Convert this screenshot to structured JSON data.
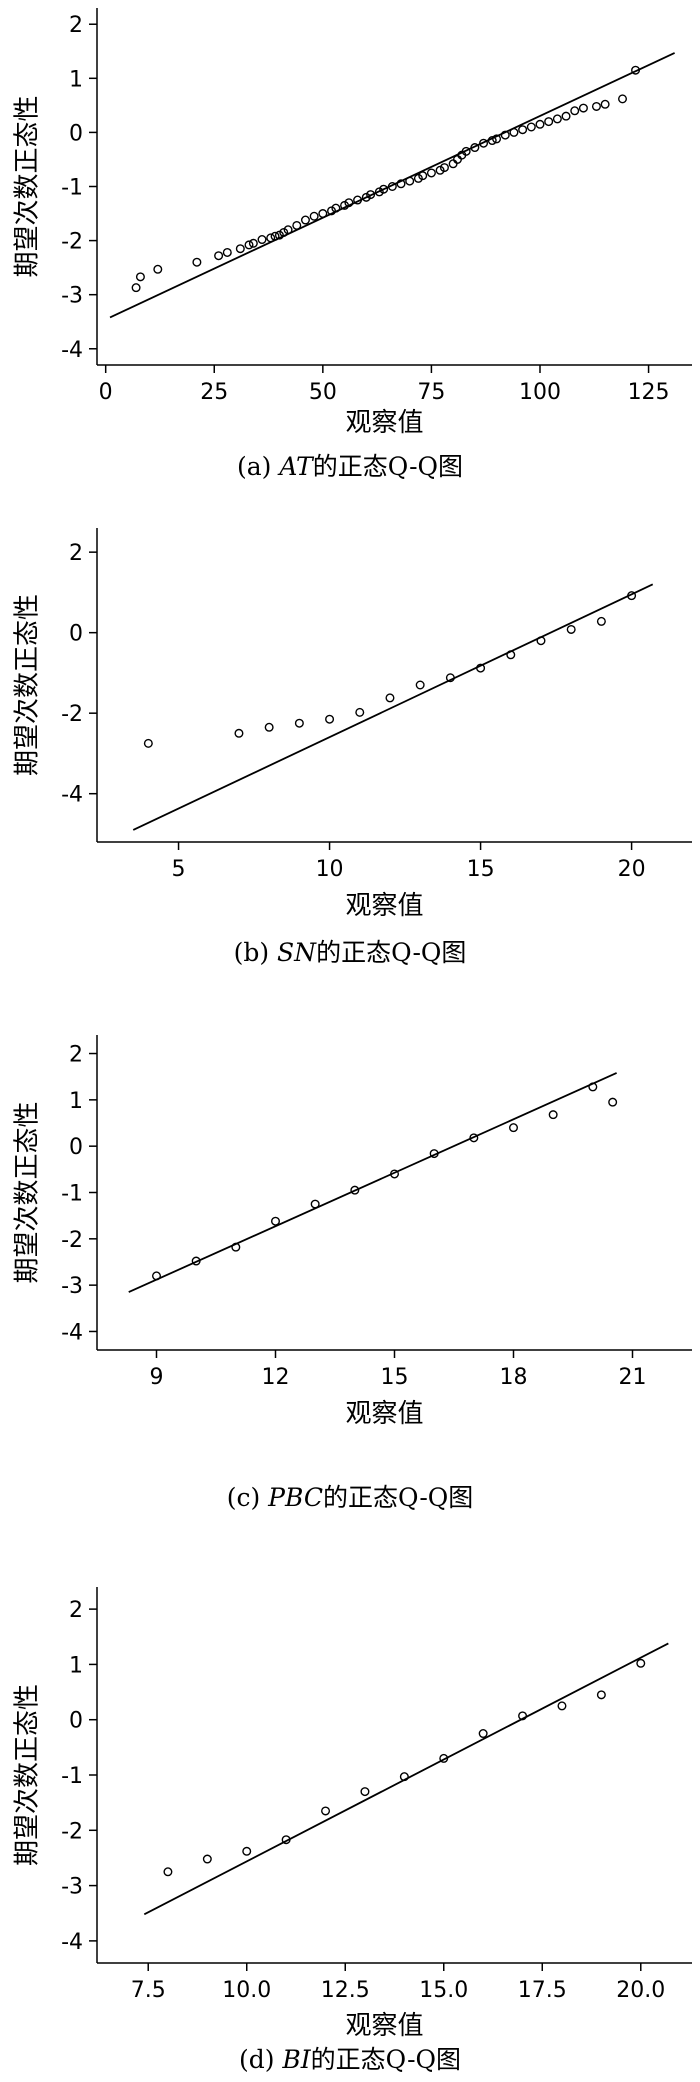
{
  "charts": [
    {
      "caption": {
        "prefix": "(a) ",
        "var": "AT",
        "suffix": "的正态Q-Q图"
      },
      "chart_data": {
        "type": "scatter",
        "title": "",
        "xlabel": "观察值",
        "ylabel": "期望次数正态性",
        "xlim": [
          -2,
          135
        ],
        "ylim": [
          -4.3,
          2.3
        ],
        "xticks": [
          0,
          25,
          50,
          75,
          100,
          125
        ],
        "xtick_labels": [
          "0",
          "25",
          "50",
          "75",
          "100",
          "125"
        ],
        "yticks": [
          2,
          1,
          0,
          -1,
          -2,
          -3,
          -4
        ],
        "ytick_labels": [
          "2",
          "1",
          "0",
          "-1",
          "-2",
          "-3",
          "-4"
        ],
        "reference_line": {
          "x": [
            1,
            131
          ],
          "y": [
            -3.42,
            1.47
          ]
        },
        "points": [
          [
            7,
            -2.87
          ],
          [
            8,
            -2.67
          ],
          [
            12,
            -2.53
          ],
          [
            21,
            -2.4
          ],
          [
            26,
            -2.28
          ],
          [
            28,
            -2.22
          ],
          [
            31,
            -2.15
          ],
          [
            33,
            -2.08
          ],
          [
            34,
            -2.05
          ],
          [
            36,
            -1.98
          ],
          [
            38,
            -1.95
          ],
          [
            39,
            -1.92
          ],
          [
            40,
            -1.9
          ],
          [
            41,
            -1.85
          ],
          [
            42,
            -1.8
          ],
          [
            44,
            -1.72
          ],
          [
            46,
            -1.62
          ],
          [
            48,
            -1.55
          ],
          [
            50,
            -1.5
          ],
          [
            52,
            -1.45
          ],
          [
            53,
            -1.4
          ],
          [
            55,
            -1.35
          ],
          [
            56,
            -1.3
          ],
          [
            58,
            -1.25
          ],
          [
            60,
            -1.2
          ],
          [
            61,
            -1.15
          ],
          [
            63,
            -1.1
          ],
          [
            64,
            -1.05
          ],
          [
            66,
            -1.0
          ],
          [
            68,
            -0.95
          ],
          [
            70,
            -0.9
          ],
          [
            72,
            -0.85
          ],
          [
            73,
            -0.8
          ],
          [
            75,
            -0.75
          ],
          [
            77,
            -0.7
          ],
          [
            78,
            -0.65
          ],
          [
            80,
            -0.58
          ],
          [
            81,
            -0.5
          ],
          [
            82,
            -0.42
          ],
          [
            83,
            -0.35
          ],
          [
            85,
            -0.28
          ],
          [
            87,
            -0.2
          ],
          [
            89,
            -0.15
          ],
          [
            90,
            -0.12
          ],
          [
            92,
            -0.05
          ],
          [
            94,
            0.0
          ],
          [
            96,
            0.05
          ],
          [
            98,
            0.1
          ],
          [
            100,
            0.15
          ],
          [
            102,
            0.2
          ],
          [
            104,
            0.25
          ],
          [
            106,
            0.3
          ],
          [
            108,
            0.4
          ],
          [
            110,
            0.45
          ],
          [
            113,
            0.48
          ],
          [
            115,
            0.52
          ],
          [
            119,
            0.62
          ],
          [
            122,
            1.15
          ]
        ]
      }
    },
    {
      "caption": {
        "prefix": "(b) ",
        "var": "SN",
        "suffix": "的正态Q-Q图"
      },
      "chart_data": {
        "type": "scatter",
        "title": "",
        "xlabel": "观察值",
        "ylabel": "期望次数正态性",
        "xlim": [
          2.3,
          22
        ],
        "ylim": [
          -5.2,
          2.6
        ],
        "xticks": [
          5,
          10,
          15,
          20
        ],
        "xtick_labels": [
          "5",
          "10",
          "15",
          "20"
        ],
        "yticks": [
          2,
          0,
          -2,
          -4
        ],
        "ytick_labels": [
          "2",
          "0",
          "-2",
          "-4"
        ],
        "reference_line": {
          "x": [
            3.5,
            20.7
          ],
          "y": [
            -4.9,
            1.2
          ]
        },
        "points": [
          [
            4,
            -2.75
          ],
          [
            7,
            -2.5
          ],
          [
            8,
            -2.35
          ],
          [
            9,
            -2.25
          ],
          [
            10,
            -2.15
          ],
          [
            11,
            -1.98
          ],
          [
            12,
            -1.62
          ],
          [
            13,
            -1.3
          ],
          [
            14,
            -1.12
          ],
          [
            15,
            -0.88
          ],
          [
            16,
            -0.55
          ],
          [
            17,
            -0.2
          ],
          [
            18,
            0.08
          ],
          [
            19,
            0.28
          ],
          [
            20,
            0.92
          ]
        ]
      }
    },
    {
      "caption": {
        "prefix": "(c) ",
        "var": "PBC",
        "suffix": "的正态Q-Q图"
      },
      "chart_data": {
        "type": "scatter",
        "title": "",
        "xlabel": "观察值",
        "ylabel": "期望次数正态性",
        "xlim": [
          7.5,
          22.5
        ],
        "ylim": [
          -4.4,
          2.4
        ],
        "xticks": [
          9,
          12,
          15,
          18,
          21
        ],
        "xtick_labels": [
          "9",
          "12",
          "15",
          "18",
          "21"
        ],
        "yticks": [
          2,
          1,
          0,
          -1,
          -2,
          -3,
          -4
        ],
        "ytick_labels": [
          "2",
          "1",
          "0",
          "-1",
          "-2",
          "-3",
          "-4"
        ],
        "reference_line": {
          "x": [
            8.3,
            20.6
          ],
          "y": [
            -3.15,
            1.58
          ]
        },
        "points": [
          [
            9,
            -2.8
          ],
          [
            10,
            -2.48
          ],
          [
            11,
            -2.18
          ],
          [
            12,
            -1.62
          ],
          [
            13,
            -1.25
          ],
          [
            14,
            -0.95
          ],
          [
            15,
            -0.6
          ],
          [
            16,
            -0.16
          ],
          [
            17,
            0.18
          ],
          [
            18,
            0.4
          ],
          [
            19,
            0.68
          ],
          [
            20,
            1.28
          ],
          [
            20.5,
            0.95
          ]
        ]
      }
    },
    {
      "caption": {
        "prefix": "(d) ",
        "var": "BI",
        "suffix": "的正态Q-Q图"
      },
      "chart_data": {
        "type": "scatter",
        "title": "",
        "xlabel": "观察值",
        "ylabel": "期望次数正态性",
        "xlim": [
          6.2,
          21.3
        ],
        "ylim": [
          -4.4,
          2.4
        ],
        "xticks": [
          7.5,
          10.0,
          12.5,
          15.0,
          17.5,
          20.0
        ],
        "xtick_labels": [
          "7.5",
          "10.0",
          "12.5",
          "15.0",
          "17.5",
          "20.0"
        ],
        "yticks": [
          2,
          1,
          0,
          -1,
          -2,
          -3,
          -4
        ],
        "ytick_labels": [
          "2",
          "1",
          "0",
          "-1",
          "-2",
          "-3",
          "-4"
        ],
        "reference_line": {
          "x": [
            7.4,
            20.7
          ],
          "y": [
            -3.52,
            1.38
          ]
        },
        "points": [
          [
            8,
            -2.75
          ],
          [
            9,
            -2.52
          ],
          [
            10,
            -2.38
          ],
          [
            11,
            -2.17
          ],
          [
            12,
            -1.65
          ],
          [
            13,
            -1.3
          ],
          [
            14,
            -1.03
          ],
          [
            15,
            -0.7
          ],
          [
            16,
            -0.25
          ],
          [
            17,
            0.07
          ],
          [
            18,
            0.25
          ],
          [
            19,
            0.45
          ],
          [
            20,
            1.02
          ]
        ]
      }
    }
  ]
}
